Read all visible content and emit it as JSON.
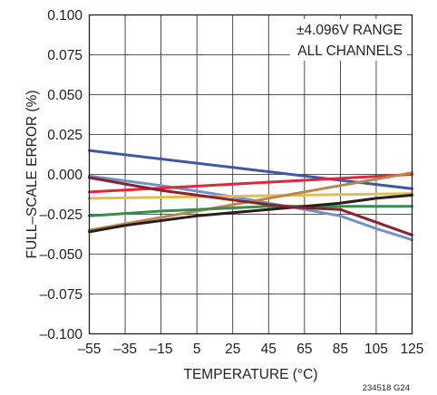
{
  "chart_data": {
    "type": "line",
    "title": "",
    "xlabel": "TEMPERATURE (°C)",
    "ylabel": "FULL–SCALE ERROR (%)",
    "xlim": [
      -55,
      125
    ],
    "ylim": [
      -0.1,
      0.1
    ],
    "x_ticks": [
      -55,
      -35,
      -15,
      5,
      25,
      45,
      65,
      85,
      105,
      125
    ],
    "x_tick_labels": [
      "–55",
      "–35",
      "–15",
      "5",
      "25",
      "45",
      "65",
      "85",
      "105",
      "125"
    ],
    "y_ticks": [
      0.1,
      0.075,
      0.05,
      0.025,
      0,
      -0.025,
      -0.05,
      -0.075,
      -0.1
    ],
    "y_tick_labels": [
      "0.100",
      "0.075",
      "0.050",
      "0.025",
      "0.000",
      "–0.025",
      "–0.050",
      "–0.075",
      "–0.100"
    ],
    "grid": true,
    "annotation_lines": [
      "±4.096V RANGE",
      "ALL CHANNELS"
    ],
    "figure_id": "234518 G24",
    "series": [
      {
        "color": "#3d57a7",
        "x": [
          -55,
          125
        ],
        "y": [
          0.015,
          -0.009
        ]
      },
      {
        "color": "#6f93c9",
        "x": [
          -55,
          -15,
          25,
          45,
          65,
          85,
          105,
          125
        ],
        "y": [
          -0.001,
          -0.007,
          -0.014,
          -0.018,
          -0.022,
          -0.026,
          -0.034,
          -0.041
        ]
      },
      {
        "color": "#e0be54",
        "x": [
          -55,
          125
        ],
        "y": [
          -0.015,
          -0.012
        ]
      },
      {
        "color": "#e2263a",
        "x": [
          -55,
          125
        ],
        "y": [
          -0.011,
          0.0
        ]
      },
      {
        "color": "#b9864a",
        "x": [
          -55,
          125
        ],
        "y": [
          -0.035,
          0.001
        ]
      },
      {
        "color": "#3a8b4e",
        "x": [
          -55,
          -15,
          25,
          45,
          65,
          85,
          125
        ],
        "y": [
          -0.026,
          -0.023,
          -0.021,
          -0.02,
          -0.02,
          -0.02,
          -0.02
        ]
      },
      {
        "color": "#2b1d1a",
        "x": [
          -55,
          -35,
          -15,
          5,
          25,
          45,
          65,
          85,
          105,
          125
        ],
        "y": [
          -0.036,
          -0.032,
          -0.029,
          -0.026,
          -0.024,
          -0.022,
          -0.02,
          -0.018,
          -0.015,
          -0.013
        ]
      },
      {
        "color": "#8e1f2c",
        "x": [
          -55,
          -35,
          -15,
          5,
          25,
          45,
          65,
          85,
          105,
          125
        ],
        "y": [
          -0.002,
          -0.006,
          -0.01,
          -0.013,
          -0.016,
          -0.019,
          -0.021,
          -0.022,
          -0.03,
          -0.038
        ]
      }
    ]
  }
}
